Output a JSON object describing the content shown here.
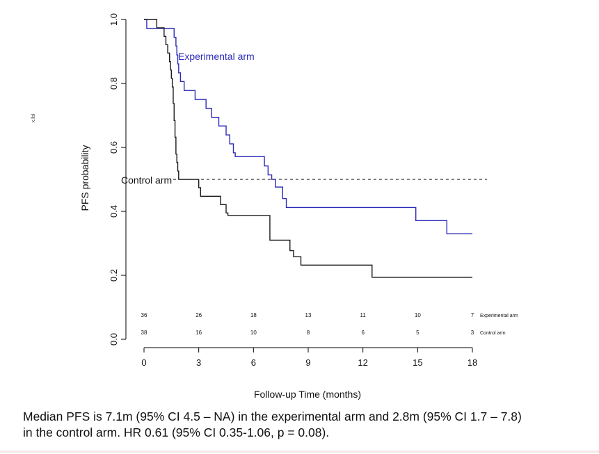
{
  "chart_data": {
    "type": "line",
    "title": "",
    "xlabel": "Follow-up Time (months)",
    "ylabel": "PFS probability",
    "side_mark": "x.lbl",
    "xlim": [
      0,
      18
    ],
    "ylim": [
      0,
      1
    ],
    "x_ticks": [
      0,
      3,
      6,
      9,
      12,
      15,
      18
    ],
    "y_ticks": [
      "0.0",
      "0.2",
      "0.4",
      "0.6",
      "0.8",
      "1.0"
    ],
    "y_tick_values": [
      0,
      0.2,
      0.4,
      0.6,
      0.8,
      1.0
    ],
    "median_line": 0.5,
    "series": [
      {
        "name": "Experimental arm",
        "color": "#2b2bb8",
        "label": "Experimental arm",
        "steps": [
          [
            0,
            1.0
          ],
          [
            0.15,
            0.972
          ],
          [
            1.15,
            0.972
          ],
          [
            1.25,
            0.972
          ],
          [
            1.6,
            0.972
          ],
          [
            1.65,
            0.944
          ],
          [
            1.75,
            0.917
          ],
          [
            1.8,
            0.889
          ],
          [
            1.85,
            0.861
          ],
          [
            1.9,
            0.833
          ],
          [
            2.0,
            0.806
          ],
          [
            2.2,
            0.778
          ],
          [
            2.8,
            0.75
          ],
          [
            3.4,
            0.722
          ],
          [
            3.7,
            0.694
          ],
          [
            4.1,
            0.667
          ],
          [
            4.5,
            0.639
          ],
          [
            4.7,
            0.611
          ],
          [
            4.9,
            0.583
          ],
          [
            5.0,
            0.571
          ],
          [
            6.5,
            0.571
          ],
          [
            6.6,
            0.542
          ],
          [
            6.8,
            0.514
          ],
          [
            7.0,
            0.5
          ],
          [
            7.2,
            0.476
          ],
          [
            7.6,
            0.44
          ],
          [
            7.8,
            0.412
          ],
          [
            14.8,
            0.412
          ],
          [
            14.9,
            0.371
          ],
          [
            16.5,
            0.371
          ],
          [
            16.6,
            0.33
          ],
          [
            18.0,
            0.33
          ]
        ]
      },
      {
        "name": "Control arm",
        "color": "#1a1a1a",
        "label": "Control arm",
        "steps": [
          [
            0,
            1.0
          ],
          [
            0.65,
            1.0
          ],
          [
            0.7,
            0.974
          ],
          [
            1.0,
            0.974
          ],
          [
            1.1,
            0.947
          ],
          [
            1.2,
            0.921
          ],
          [
            1.3,
            0.895
          ],
          [
            1.4,
            0.868
          ],
          [
            1.45,
            0.842
          ],
          [
            1.5,
            0.816
          ],
          [
            1.55,
            0.789
          ],
          [
            1.6,
            0.737
          ],
          [
            1.65,
            0.684
          ],
          [
            1.7,
            0.632
          ],
          [
            1.75,
            0.579
          ],
          [
            1.8,
            0.553
          ],
          [
            1.85,
            0.526
          ],
          [
            1.9,
            0.5
          ],
          [
            2.8,
            0.5
          ],
          [
            3.0,
            0.474
          ],
          [
            3.1,
            0.447
          ],
          [
            3.9,
            0.447
          ],
          [
            4.2,
            0.421
          ],
          [
            4.5,
            0.395
          ],
          [
            4.6,
            0.387
          ],
          [
            6.8,
            0.387
          ],
          [
            6.9,
            0.31
          ],
          [
            7.8,
            0.31
          ],
          [
            8.0,
            0.277
          ],
          [
            8.2,
            0.258
          ],
          [
            8.6,
            0.232
          ],
          [
            12.4,
            0.232
          ],
          [
            12.5,
            0.194
          ],
          [
            18.0,
            0.194
          ]
        ]
      }
    ],
    "risk_table": [
      {
        "label": "Experimental arm",
        "counts": [
          "36",
          "26",
          "18",
          "13",
          "11",
          "10",
          "7"
        ]
      },
      {
        "label": "Control arm",
        "counts": [
          "38",
          "16",
          "10",
          "8",
          "6",
          "5",
          "3"
        ]
      }
    ]
  },
  "caption": {
    "line1": "Median PFS is 7.1m (95% CI 4.5 – NA) in the experimental arm and 2.8m (95% CI 1.7 – 7.8)",
    "line2": "in the control arm. HR 0.61 (95% CI 0.35-1.06, p = 0.08)."
  }
}
